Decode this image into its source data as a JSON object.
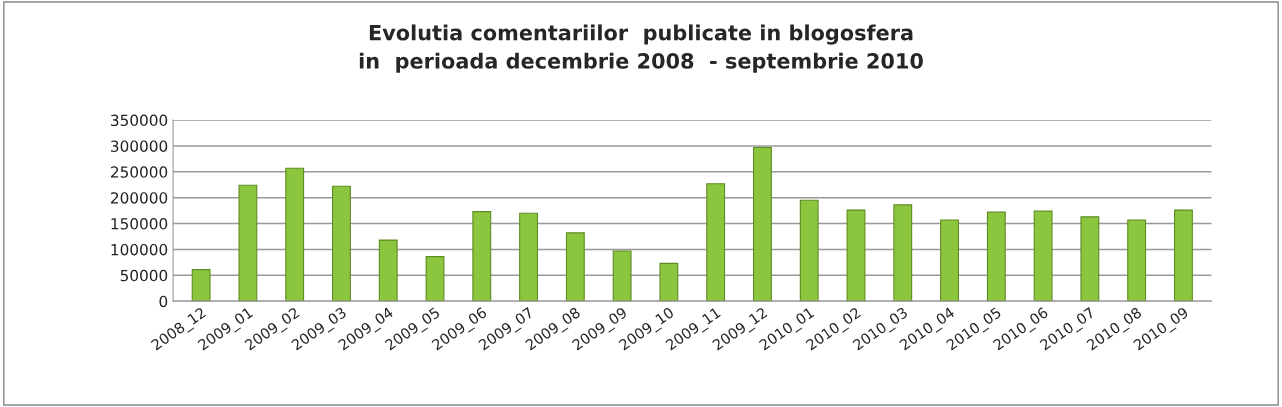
{
  "chart_data": {
    "type": "bar",
    "title": "Evolutia comentariilor  publicate in blogosfera\nin  perioada decembrie 2008  - septembrie 2010",
    "categories": [
      "2008_12",
      "2009_01",
      "2009_02",
      "2009_03",
      "2009_04",
      "2009_05",
      "2009_06",
      "2009_07",
      "2009_08",
      "2009_09",
      "2009_10",
      "2009_11",
      "2009_12",
      "2010_01",
      "2010_02",
      "2010_03",
      "2010_04",
      "2010_05",
      "2010_06",
      "2010_07",
      "2010_08",
      "2010_09"
    ],
    "values": [
      61000,
      224000,
      257000,
      222000,
      118000,
      86000,
      173000,
      170000,
      132000,
      97000,
      73000,
      227000,
      297000,
      195000,
      176000,
      186000,
      157000,
      172000,
      174000,
      163000,
      157000,
      176000
    ],
    "color": "#8cc63e",
    "ylim": [
      0,
      350000
    ],
    "yticks": [
      0,
      50000,
      100000,
      150000,
      200000,
      250000,
      300000,
      350000
    ],
    "grid": "y"
  }
}
